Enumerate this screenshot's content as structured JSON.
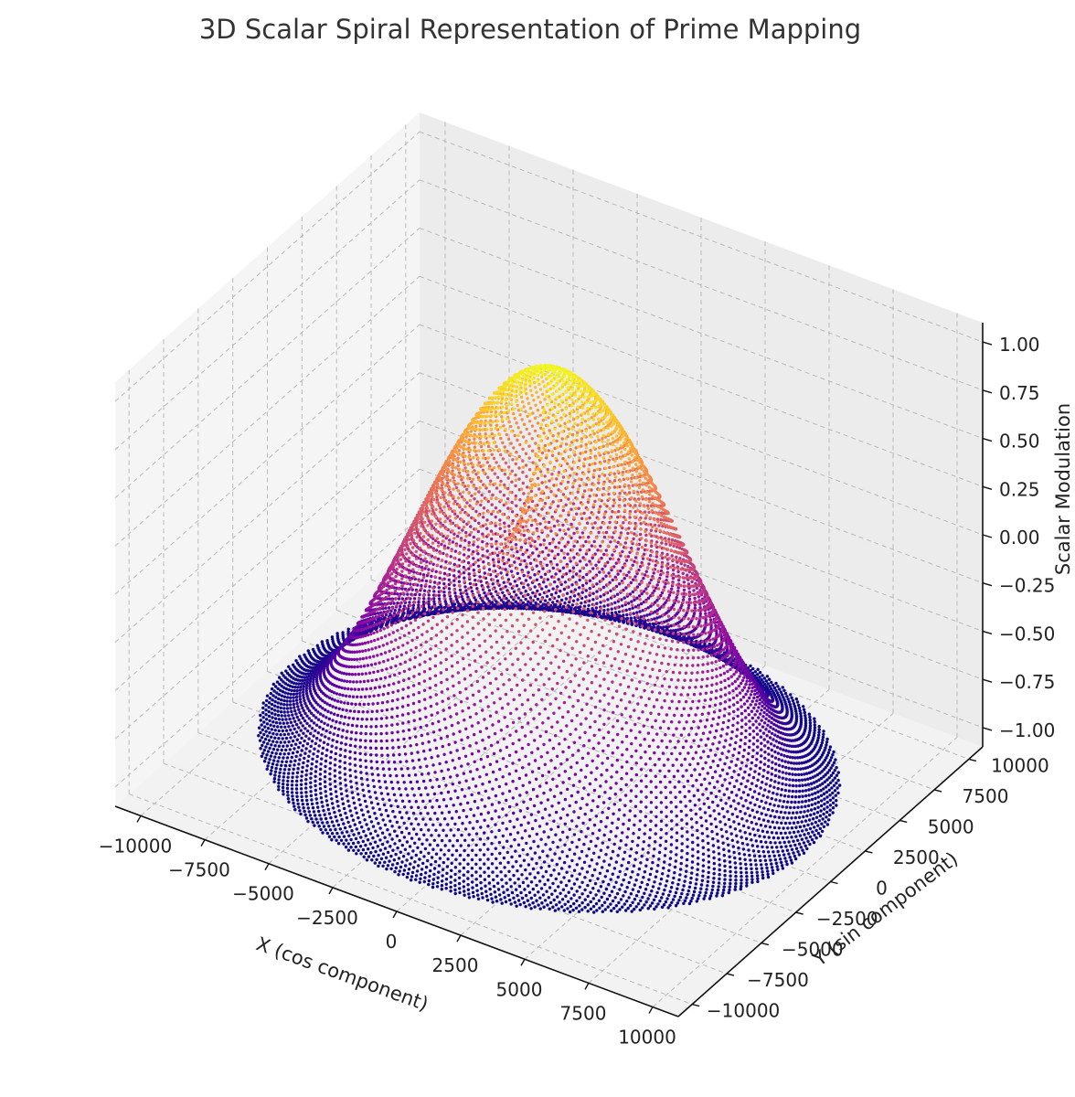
{
  "chart_data": {
    "type": "scatter",
    "projection": "3d",
    "title": "3D Scalar Spiral Representation of Prime Mapping",
    "xlabel": "X (cos component)",
    "ylabel": "Y (sin component)",
    "zlabel": "Scalar Modulation",
    "xlim": [
      -11000,
      11000
    ],
    "ylim": [
      -11000,
      11000
    ],
    "zlim": [
      -1.1,
      1.1
    ],
    "x_ticks": [
      "−10000",
      "−7500",
      "−5000",
      "−2500",
      "0",
      "2500",
      "5000",
      "7500",
      "10000"
    ],
    "x_tick_values": [
      -10000,
      -7500,
      -5000,
      -2500,
      0,
      2500,
      5000,
      7500,
      10000
    ],
    "y_ticks": [
      "−10000",
      "−7500",
      "−5000",
      "−2500",
      "0",
      "2500",
      "5000",
      "7500",
      "10000"
    ],
    "y_tick_values": [
      -10000,
      -7500,
      -5000,
      -2500,
      0,
      2500,
      5000,
      7500,
      10000
    ],
    "z_ticks": [
      "−1.00",
      "−0.75",
      "−0.50",
      "−0.25",
      "0.00",
      "0.25",
      "0.50",
      "0.75",
      "1.00"
    ],
    "z_tick_values": [
      -1.0,
      -0.75,
      -0.5,
      -0.25,
      0.0,
      0.25,
      0.5,
      0.75,
      1.0
    ],
    "grid": true,
    "colormap": "plasma",
    "colormap_stops": [
      "#0d0887",
      "#5302a3",
      "#8b0aa5",
      "#b83289",
      "#db5c68",
      "#f48849",
      "#febd2a",
      "#f0f921"
    ],
    "series": [
      {
        "marker": "dot",
        "color_by": "z",
        "point_count": 10000,
        "spiral": {
          "radius_min": 0,
          "radius_max": 10000,
          "z_inner": 1.0,
          "z_outer": -1.0,
          "notch_depth_z": -0.1
        }
      }
    ]
  }
}
